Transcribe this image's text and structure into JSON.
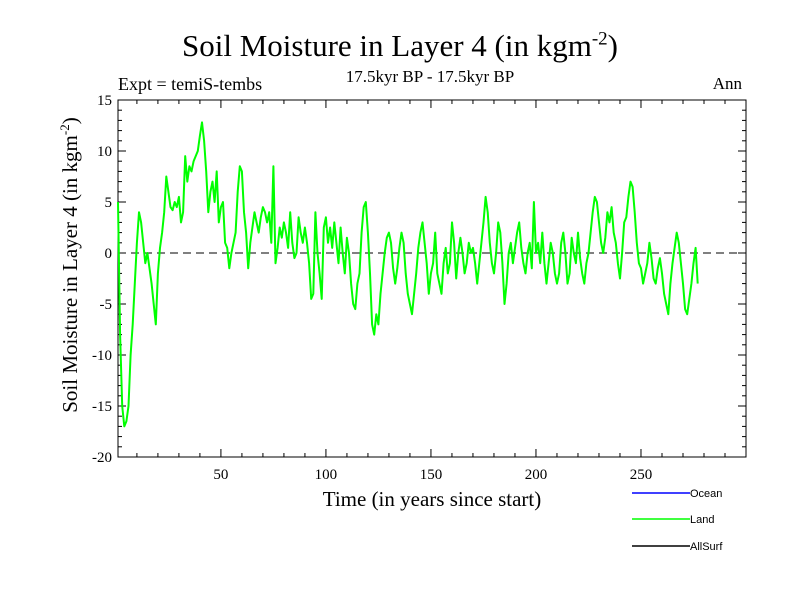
{
  "chart_data": {
    "type": "line",
    "title": "Soil Moisture in Layer 4 (in kgm",
    "title_sup": "-2",
    "title_tail": ")",
    "expt_label": "Expt = temiS-tembs",
    "period_label": "17.5kyr BP - 17.5kyr BP",
    "season_label": "Ann",
    "xlabel": "Time (in years since start)",
    "ylabel": "Soil Moisture in Layer 4 (in kgm",
    "ylabel_sup": "-2",
    "ylabel_tail": ")",
    "xlim": [
      1,
      300
    ],
    "ylim": [
      -20,
      15
    ],
    "xticks": [
      50,
      100,
      150,
      200,
      250
    ],
    "yticks": [
      -20,
      -15,
      -10,
      -5,
      0,
      5,
      10,
      15
    ],
    "zero_line": "dashed",
    "legend": [
      {
        "name": "Ocean",
        "color": "#0000ff"
      },
      {
        "name": "Land",
        "color": "#00ff00"
      },
      {
        "name": "AllSurf",
        "color": "#000000"
      }
    ],
    "series": [
      {
        "name": "Land",
        "color": "#00ff00",
        "x_start": 1,
        "x_step": 1,
        "values": [
          5.0,
          -8.0,
          -15.0,
          -17.0,
          -16.5,
          -15.0,
          -10.0,
          -7.0,
          -3.0,
          1.0,
          4.0,
          3.0,
          1.0,
          -1.0,
          0.0,
          -1.5,
          -3.0,
          -5.0,
          -7.0,
          -2.0,
          0.5,
          2.0,
          4.0,
          7.5,
          6.0,
          4.5,
          4.2,
          5.0,
          4.5,
          5.5,
          3.0,
          4.0,
          9.5,
          7.0,
          8.5,
          8.0,
          9.0,
          9.5,
          10.0,
          11.5,
          12.8,
          11.0,
          8.0,
          4.0,
          6.0,
          7.0,
          5.0,
          8.0,
          3.0,
          4.5,
          5.0,
          1.0,
          0.5,
          -1.5,
          0.0,
          1.0,
          2.0,
          6.0,
          8.5,
          8.0,
          4.0,
          2.0,
          -1.5,
          1.0,
          2.5,
          4.0,
          3.0,
          2.0,
          3.5,
          4.5,
          4.0,
          3.0,
          4.0,
          1.0,
          8.5,
          -1.0,
          0.5,
          2.5,
          1.5,
          3.0,
          2.0,
          0.5,
          4.0,
          1.0,
          -0.5,
          0.0,
          3.5,
          2.0,
          1.0,
          2.5,
          1.0,
          -1.0,
          -4.5,
          -4.0,
          4.0,
          0.0,
          -2.0,
          -4.5,
          2.5,
          3.5,
          1.0,
          2.5,
          0.5,
          3.0,
          1.0,
          -1.0,
          2.5,
          0.0,
          -2.0,
          1.5,
          0.0,
          -3.0,
          -5.0,
          -5.5,
          -3.0,
          -2.0,
          2.0,
          4.5,
          5.0,
          2.0,
          -2.0,
          -7.0,
          -8.0,
          -6.0,
          -7.0,
          -4.0,
          -2.0,
          0.0,
          1.5,
          2.0,
          1.0,
          -1.5,
          -3.0,
          -1.5,
          0.5,
          2.0,
          1.0,
          -2.0,
          -4.0,
          -5.0,
          -6.0,
          -4.0,
          -2.0,
          0.5,
          2.0,
          3.0,
          1.0,
          -1.0,
          -4.0,
          -2.0,
          -1.0,
          2.0,
          -2.0,
          -3.0,
          -4.0,
          -1.0,
          0.5,
          -2.0,
          -1.0,
          3.0,
          1.0,
          -2.5,
          0.0,
          1.5,
          0.0,
          -2.0,
          -1.0,
          1.0,
          0.0,
          0.5,
          -1.0,
          -3.0,
          -1.0,
          1.0,
          3.0,
          5.5,
          4.0,
          1.0,
          -1.0,
          -2.0,
          0.0,
          3.0,
          2.0,
          -1.0,
          -5.0,
          -3.0,
          0.0,
          1.0,
          -1.0,
          0.5,
          2.0,
          3.0,
          0.5,
          -1.0,
          -2.0,
          0.0,
          1.0,
          -1.5,
          5.0,
          0.0,
          1.0,
          -1.0,
          2.0,
          -1.0,
          -3.0,
          -1.0,
          1.0,
          0.0,
          -2.0,
          -3.0,
          -2.0,
          1.0,
          2.0,
          0.0,
          -3.0,
          -2.0,
          1.5,
          0.0,
          -1.0,
          2.0,
          -0.5,
          -2.0,
          -3.0,
          -1.0,
          0.0,
          2.0,
          4.0,
          5.5,
          5.0,
          3.0,
          1.0,
          0.0,
          1.5,
          4.0,
          3.0,
          4.5,
          2.0,
          1.0,
          -1.0,
          -2.5,
          0.0,
          3.0,
          3.5,
          5.5,
          7.0,
          6.5,
          4.0,
          1.0,
          -1.0,
          -1.5,
          -3.0,
          -2.0,
          -1.0,
          1.0,
          -0.5,
          -2.5,
          -3.0,
          -1.5,
          -0.5,
          -2.0,
          -4.0,
          -5.0,
          -6.0,
          -3.0,
          -1.0,
          0.5,
          2.0,
          1.0,
          -1.0,
          -3.0,
          -5.5,
          -6.0,
          -4.5,
          -3.0,
          -1.0,
          0.5,
          -3.0
        ]
      }
    ]
  }
}
